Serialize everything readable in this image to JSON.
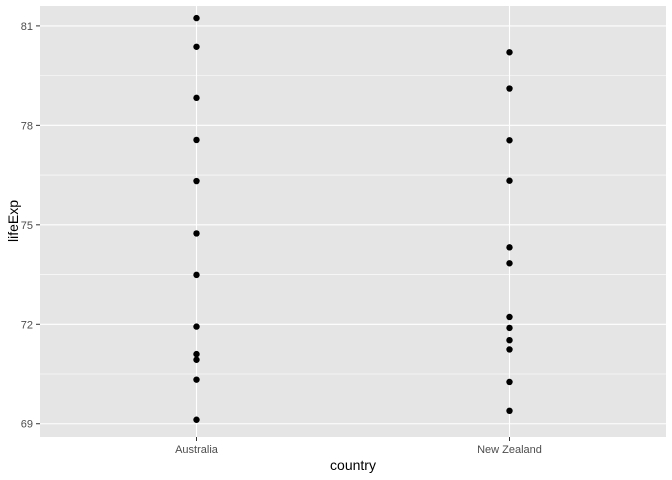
{
  "chart_data": {
    "type": "scatter",
    "title": "",
    "xlabel": "country",
    "ylabel": "lifeExp",
    "categories": [
      "Australia",
      "New Zealand"
    ],
    "ylim": [
      68.6,
      81.6
    ],
    "yticks": [
      69,
      72,
      75,
      78,
      81
    ],
    "grid": true,
    "colors": {
      "panel": "#e5e5e5",
      "grid_major": "#ffffff",
      "point": "#000000",
      "tick": "#333333"
    },
    "series": [
      {
        "category": "Australia",
        "values": [
          69.12,
          70.33,
          70.93,
          71.1,
          71.93,
          73.49,
          74.74,
          76.32,
          77.56,
          78.83,
          80.37,
          81.235
        ]
      },
      {
        "category": "New Zealand",
        "values": [
          69.39,
          70.26,
          71.24,
          71.52,
          71.89,
          72.22,
          73.84,
          74.32,
          76.33,
          77.55,
          79.11,
          80.204
        ]
      }
    ]
  }
}
